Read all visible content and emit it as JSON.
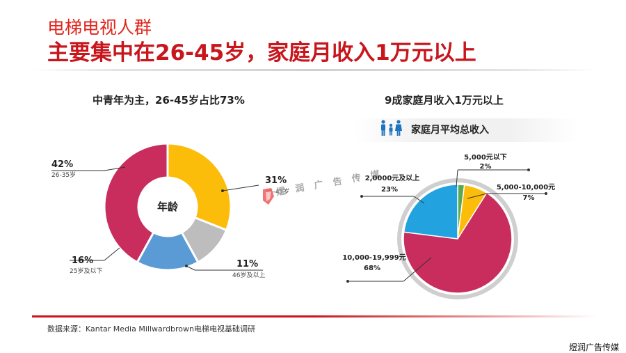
{
  "header": {
    "title": "电梯电视人群",
    "subtitle": "主要集中在26-45岁，家庭月收入1万元以上"
  },
  "chart_data": [
    {
      "type": "donut",
      "title": "中青年为主，26-45岁占比73%",
      "center_label": "年龄",
      "slices": [
        {
          "value": 31,
          "label": "31%",
          "category": "36-45岁",
          "color": "#fcbc0a"
        },
        {
          "value": 11,
          "label": "11%",
          "category": "46岁及以上",
          "color": "#bdbdbd"
        },
        {
          "value": 16,
          "label": "16%",
          "category": "25岁及以下",
          "color": "#5b9bd5"
        },
        {
          "value": 42,
          "label": "42%",
          "category": "26-35岁",
          "color": "#c92d5e"
        }
      ]
    },
    {
      "type": "pie",
      "title": "9成家庭月收入1万元以上",
      "subtitle": "家庭月平均总收入",
      "slices": [
        {
          "value": 2,
          "label": "2%",
          "category": "5,000元以下",
          "color": "#5aa84f"
        },
        {
          "value": 7,
          "label": "7%",
          "category": "5,000-10,000元",
          "color": "#fcbc0a"
        },
        {
          "value": 68,
          "label": "68%",
          "category": "10,000-19,999元",
          "color": "#c92d5e"
        },
        {
          "value": 23,
          "label": "23%",
          "category": "2,0000元及以上",
          "color": "#22a3df"
        }
      ]
    }
  ],
  "footer": {
    "source": "数据来源：Kantar Media Millwardbrown电梯电视基础调研"
  },
  "watermark": {
    "corner": "煜润广告传媒",
    "center": "煜 润 广 告 传 媒"
  },
  "colors": {
    "title_red": "#e0241b",
    "subtitle_red": "#c8161d",
    "pie_ring": "#cfcfcf",
    "icon_blue": "#1e73be"
  },
  "icons": {
    "family": "family-icon"
  }
}
